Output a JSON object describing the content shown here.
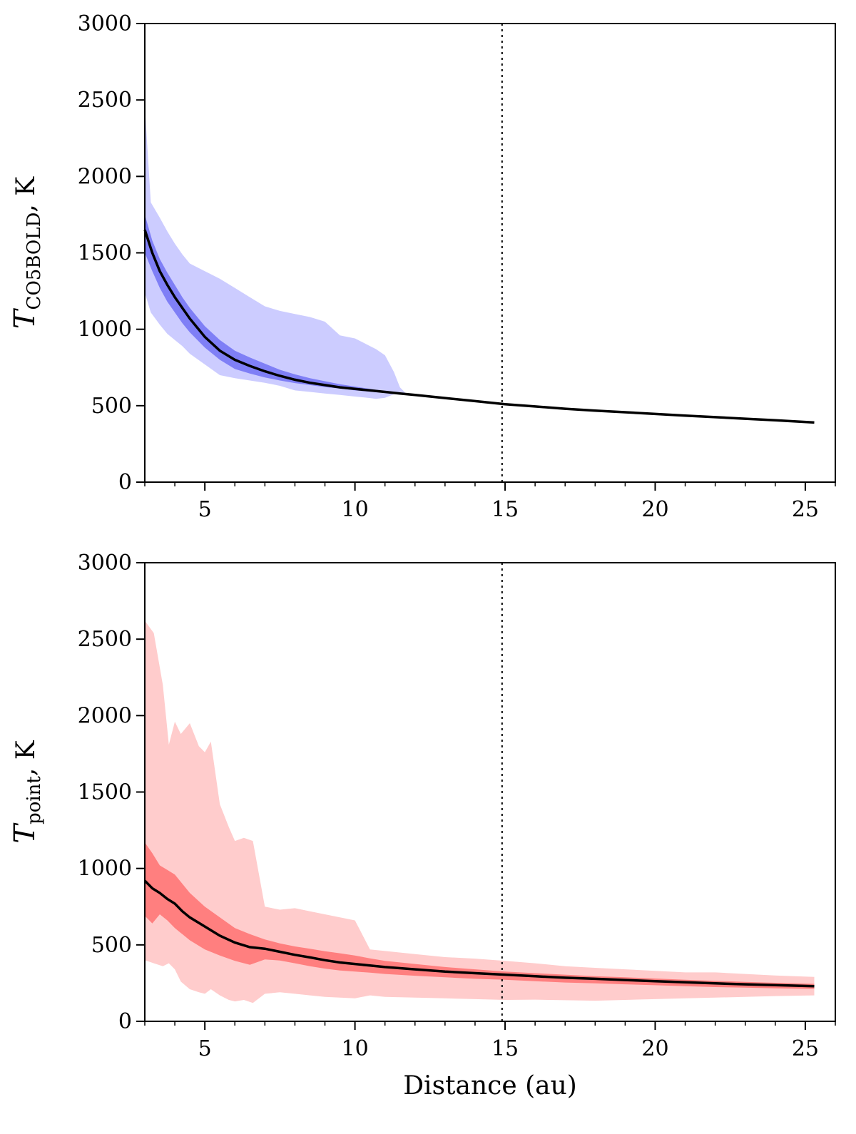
{
  "chart_data": [
    {
      "type": "line",
      "panel": "top",
      "ylabel": {
        "symbol": "T",
        "subscript": "CO5BOLD",
        "unit": ", K"
      },
      "xlabel": "",
      "xlim": [
        3,
        26
      ],
      "ylim": [
        0,
        3000
      ],
      "xticks": [
        "5",
        "10",
        "15",
        "20",
        "25"
      ],
      "yticks": [
        "0",
        "500",
        "1000",
        "1500",
        "2000",
        "2500",
        "3000"
      ],
      "vline_x": 14.9,
      "colors": {
        "outer_band": "#ccccff",
        "inner_band": "#7f7ff6",
        "line": "#000000"
      },
      "x": [
        3.0,
        3.25,
        3.5,
        3.75,
        4.0,
        4.25,
        4.5,
        5.0,
        5.5,
        6.0,
        6.5,
        7.0,
        7.5,
        8.0,
        8.5,
        9.0,
        9.5,
        10.0,
        10.5,
        11.0,
        11.5,
        12.0,
        13.0,
        14.0,
        15.0,
        16.0,
        17.0,
        18.0,
        19.0,
        20.0,
        21.0,
        22.0,
        23.0,
        24.0,
        25.3
      ],
      "median": [
        1650,
        1500,
        1380,
        1290,
        1210,
        1140,
        1070,
        950,
        860,
        800,
        760,
        725,
        695,
        670,
        650,
        635,
        620,
        610,
        600,
        590,
        580,
        570,
        550,
        530,
        510,
        495,
        480,
        468,
        457,
        446,
        435,
        425,
        415,
        405,
        390
      ],
      "inner_upper": [
        1750,
        1580,
        1460,
        1370,
        1290,
        1210,
        1140,
        1020,
        930,
        860,
        815,
        775,
        735,
        705,
        680,
        660,
        640,
        625,
        610,
        595,
        582
      ],
      "inner_lower": [
        1500,
        1380,
        1270,
        1180,
        1110,
        1040,
        980,
        880,
        800,
        740,
        710,
        685,
        665,
        648,
        635,
        622,
        612,
        600,
        592,
        585,
        578
      ],
      "outer_upper": [
        2460,
        1830,
        1730,
        1640,
        1560,
        1490,
        1430,
        1380,
        1330,
        1270,
        1210,
        1150,
        1120,
        1100,
        1080,
        1050,
        960,
        940,
        890,
        870,
        830,
        720,
        620,
        580
      ],
      "outer_lower": [
        1240,
        1110,
        1030,
        970,
        930,
        890,
        840,
        770,
        700,
        680,
        665,
        650,
        630,
        600,
        590,
        580,
        570,
        560,
        550,
        545,
        552,
        575,
        590,
        580
      ],
      "outer_x": [
        3.0,
        3.2,
        3.5,
        3.75,
        4.0,
        4.25,
        4.5,
        5.0,
        5.5,
        6.0,
        6.5,
        7.0,
        7.5,
        8.0,
        8.5,
        9.0,
        9.5,
        10.0,
        10.5,
        10.7,
        11.0,
        11.3,
        11.5,
        11.7
      ]
    },
    {
      "type": "line",
      "panel": "bottom",
      "ylabel": {
        "symbol": "T",
        "subscript": "point",
        "unit": ", K"
      },
      "xlabel": "Distance (au)",
      "xlim": [
        3,
        26
      ],
      "ylim": [
        0,
        3000
      ],
      "xticks": [
        "5",
        "10",
        "15",
        "20",
        "25"
      ],
      "yticks": [
        "0",
        "500",
        "1000",
        "1500",
        "2000",
        "2500",
        "3000"
      ],
      "vline_x": 14.9,
      "colors": {
        "outer_band": "#ffcccc",
        "inner_band": "#ff7f7f",
        "line": "#000000"
      },
      "x": [
        3.0,
        3.25,
        3.5,
        3.75,
        4.0,
        4.25,
        4.5,
        5.0,
        5.5,
        6.0,
        6.5,
        7.0,
        7.5,
        8.0,
        8.5,
        9.0,
        9.5,
        10.0,
        10.5,
        11.0,
        12.0,
        13.0,
        14.0,
        15.0,
        16.0,
        17.0,
        18.0,
        19.0,
        20.0,
        21.0,
        22.0,
        23.0,
        24.0,
        25.3
      ],
      "median": [
        920,
        870,
        840,
        800,
        770,
        720,
        680,
        620,
        560,
        515,
        485,
        475,
        455,
        435,
        418,
        400,
        385,
        375,
        365,
        355,
        340,
        325,
        315,
        305,
        295,
        285,
        278,
        270,
        262,
        255,
        248,
        242,
        237,
        230
      ],
      "inner_upper": [
        1170,
        1100,
        1020,
        990,
        960,
        900,
        840,
        750,
        680,
        610,
        570,
        535,
        510,
        490,
        475,
        458,
        445,
        430,
        412,
        395,
        375,
        355,
        340,
        325,
        315,
        305,
        295,
        288,
        280,
        272,
        265,
        258,
        252,
        245
      ],
      "inner_lower": [
        690,
        640,
        700,
        660,
        610,
        570,
        530,
        470,
        430,
        395,
        370,
        405,
        398,
        380,
        360,
        345,
        332,
        325,
        318,
        310,
        298,
        288,
        278,
        272,
        262,
        254,
        248,
        242,
        236,
        230,
        224,
        220,
        216,
        212
      ],
      "outer_x": [
        3.0,
        3.3,
        3.6,
        3.8,
        4.0,
        4.2,
        4.5,
        4.8,
        5.0,
        5.2,
        5.5,
        5.8,
        6.0,
        6.3,
        6.6,
        7.0,
        7.5,
        8.0,
        8.5,
        9.0,
        9.5,
        10.0,
        10.5,
        11.0,
        12.0,
        13.0,
        14.0,
        15.0,
        16.0,
        17.0,
        18.0,
        19.0,
        20.0,
        21.0,
        22.0,
        23.0,
        24.0,
        25.3
      ],
      "outer_upper": [
        2620,
        2540,
        2200,
        1810,
        1960,
        1880,
        1950,
        1800,
        1760,
        1830,
        1420,
        1270,
        1180,
        1200,
        1180,
        750,
        730,
        740,
        720,
        700,
        680,
        660,
        470,
        460,
        440,
        420,
        410,
        395,
        380,
        360,
        350,
        340,
        330,
        320,
        320,
        310,
        300,
        290
      ],
      "outer_lower": [
        400,
        380,
        360,
        380,
        340,
        260,
        210,
        190,
        180,
        210,
        170,
        140,
        130,
        140,
        120,
        180,
        190,
        180,
        170,
        160,
        155,
        150,
        170,
        160,
        155,
        150,
        145,
        140,
        142,
        138,
        135,
        140,
        145,
        150,
        155,
        160,
        165,
        170
      ]
    }
  ]
}
